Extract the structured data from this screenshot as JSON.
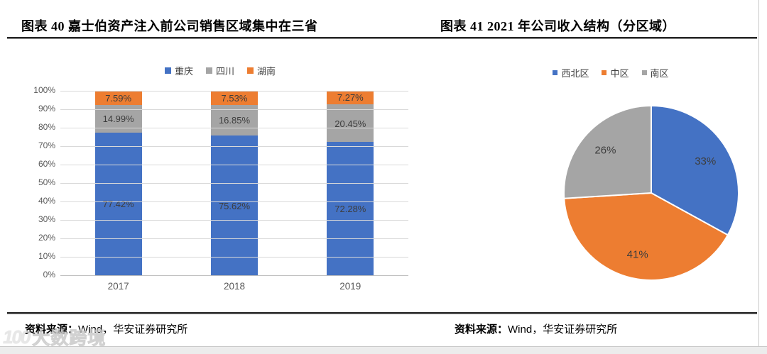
{
  "figures": {
    "left": {
      "title": "图表 40  嘉士伯资产注入前公司销售区域集中在三省",
      "source_label": "资料来源：",
      "source_text": "Wind，华安证券研究所"
    },
    "right": {
      "title": "图表 41 2021 年公司收入结构（分区域）",
      "source_label": "资料来源：",
      "source_text": "Wind，华安证券研究所"
    }
  },
  "watermark": {
    "logo_text": "100",
    "brand": "大数跨境"
  },
  "chart_data": [
    {
      "type": "bar",
      "stacked": true,
      "title": "嘉士伯资产注入前公司销售区域集中在三省",
      "categories": [
        "2017",
        "2018",
        "2019"
      ],
      "series": [
        {
          "name": "重庆",
          "color": "#4472C4",
          "values": [
            77.42,
            75.62,
            72.28
          ],
          "labels": [
            "77.42%",
            "75.62%",
            "72.28%"
          ]
        },
        {
          "name": "四川",
          "color": "#A5A5A5",
          "values": [
            14.99,
            16.85,
            20.45
          ],
          "labels": [
            "14.99%",
            "16.85%",
            "20.45%"
          ]
        },
        {
          "name": "湖南",
          "color": "#ED7D31",
          "values": [
            7.59,
            7.53,
            7.27
          ],
          "labels": [
            "7.59%",
            "7.53%",
            "7.27%"
          ]
        }
      ],
      "ylim": [
        0,
        100
      ],
      "yticks": [
        "0%",
        "10%",
        "20%",
        "30%",
        "40%",
        "50%",
        "60%",
        "70%",
        "80%",
        "90%",
        "100%"
      ],
      "grid": true,
      "legend_position": "top",
      "gridline_color": "#d9d9d9"
    },
    {
      "type": "pie",
      "title": "2021 年公司收入结构（分区域）",
      "labels": [
        "西北区",
        "中区",
        "南区"
      ],
      "values": [
        33,
        41,
        26
      ],
      "colors": [
        "#4472C4",
        "#ED7D31",
        "#A5A5A5"
      ],
      "data_labels": [
        "33%",
        "41%",
        "26%"
      ],
      "start_angle_deg": 0,
      "direction": "clockwise",
      "legend_position": "top",
      "label_color": "#3d3d3d"
    }
  ]
}
